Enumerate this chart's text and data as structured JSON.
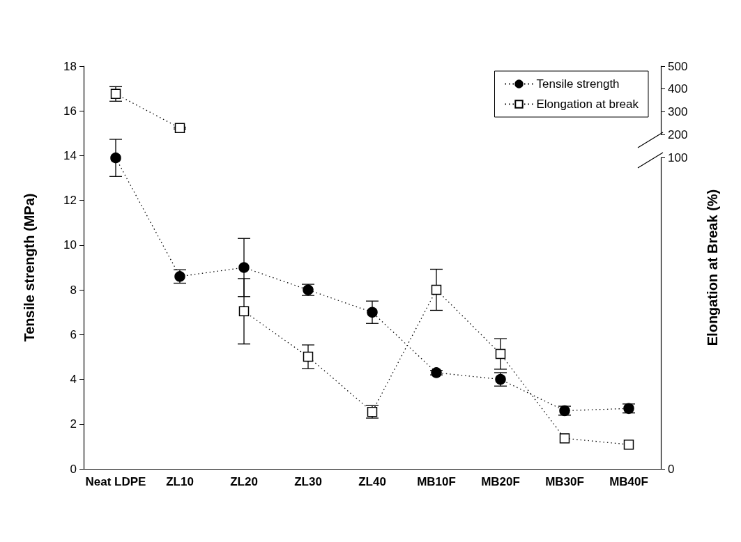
{
  "chart_data": {
    "type": "line",
    "categories": [
      "Neat LDPE",
      "ZL10",
      "ZL20",
      "ZL30",
      "ZL40",
      "MB10F",
      "MB20F",
      "MB30F",
      "MB40F"
    ],
    "ylabel": "Tensile strength (MPa)",
    "y2label": "Elongation at Break (%)",
    "ylim": [
      0,
      18
    ],
    "yticks": [
      0,
      2,
      4,
      6,
      8,
      10,
      12,
      14,
      16,
      18
    ],
    "y2lim": [
      0,
      100
    ],
    "y2ticks": [
      0,
      100
    ],
    "y3lim": [
      200,
      500
    ],
    "y3ticks": [
      200,
      300,
      400,
      500
    ],
    "line_style": "dotted",
    "legend": "top right",
    "grid": false,
    "series": [
      {
        "name": "Tensile strength",
        "color": "#000000",
        "marker": "circle",
        "values": [
          13.9,
          8.6,
          9.0,
          8.0,
          7.0,
          4.3,
          4.0,
          2.6,
          2.7
        ],
        "errors": [
          0.83,
          0.3,
          1.3,
          0.25,
          0.5,
          0.1,
          0.3,
          0.2,
          0.2
        ]
      },
      {
        "name": "Elongation at break",
        "color": "#000000",
        "marker": "square",
        "axis": "y2",
        "values": [
          null,
          null,
          50.6,
          36.0,
          18.3,
          57.5,
          36.9,
          9.8,
          7.8
        ],
        "errors": [
          null,
          null,
          10.5,
          3.8,
          2,
          6.6,
          4.9,
          null,
          null
        ]
      },
      {
        "color": "#000000",
        "marker": "square",
        "axis": "y3",
        "values": [
          378,
          228,
          null,
          null,
          null,
          null,
          null,
          null,
          null
        ],
        "errors": [
          32,
          4,
          null,
          null,
          null,
          null,
          null,
          null,
          null
        ]
      }
    ]
  }
}
